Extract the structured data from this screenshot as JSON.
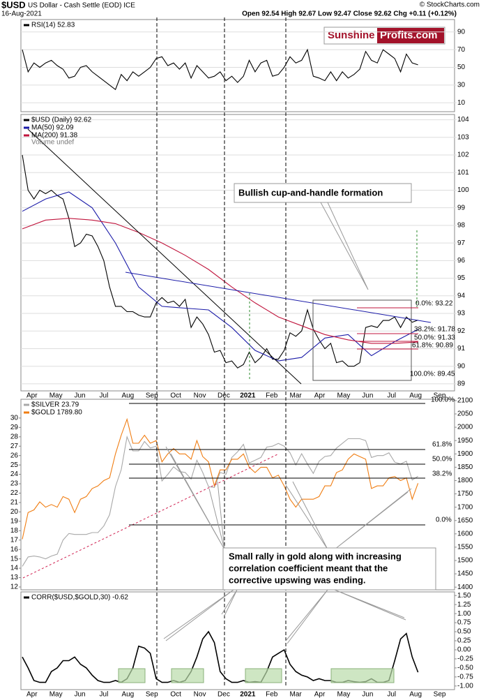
{
  "header": {
    "symbol": "$USD",
    "name": "US Dollar - Cash Settle (EOD) ICE",
    "source": "© StockCharts.com",
    "date": "16-Aug-2021",
    "ohlc": "Open 92.54 High 92.67 Low 92.47 Close 92.62 Chg +0.11 (+0.12%)",
    "logo_a": "Sunshine",
    "logo_b": "Profits.com"
  },
  "chart_data": [
    {
      "type": "line",
      "ylim": [
        0,
        104
      ],
      "yticks": [
        10,
        30,
        50,
        70,
        90
      ],
      "grid": true,
      "series": [
        {
          "name": "RSI(14) 52.83",
          "color": "#000000",
          "values": [
            70,
            45,
            55,
            50,
            55,
            58,
            52,
            48,
            38,
            40,
            50,
            52,
            45,
            40,
            35,
            30,
            25,
            42,
            35,
            45,
            40,
            45,
            50,
            60,
            62,
            52,
            55,
            48,
            55,
            38,
            52,
            45,
            38,
            40,
            45,
            35,
            40,
            33,
            40,
            58,
            45,
            55,
            58,
            40,
            42,
            50,
            62,
            55,
            58,
            70,
            40,
            38,
            35,
            45,
            35,
            45,
            38,
            42,
            48,
            68,
            58,
            55,
            70,
            65,
            60,
            45,
            65,
            55,
            52.83
          ]
        }
      ]
    },
    {
      "type": "line",
      "ylim": [
        88.6,
        104.3
      ],
      "yticks": [
        89,
        90,
        91,
        92,
        93,
        94,
        95,
        96,
        97,
        98,
        99,
        100,
        101,
        102,
        103,
        104
      ],
      "grid": true,
      "series": [
        {
          "name": "$USD (Daily) 92.62",
          "color": "#000000",
          "values": [
            102,
            100,
            99.5,
            100,
            99.8,
            100,
            99.7,
            99.5,
            98.4,
            96.8,
            97,
            97.5,
            97.4,
            96.8,
            96,
            94.5,
            93.4,
            93.4,
            93.1,
            93.1,
            92.9,
            92.8,
            92.8,
            93.6,
            93.9,
            93.6,
            93.7,
            93.4,
            93.8,
            92.2,
            92.8,
            92.4,
            91.8,
            90.8,
            90.9,
            90.2,
            90.3,
            89.9,
            90.1,
            90.8,
            90.2,
            90.5,
            91,
            90.4,
            90.4,
            90.9,
            91.9,
            91.7,
            92,
            93.2,
            92.1,
            91.5,
            91,
            91.3,
            90.2,
            90.3,
            90,
            90,
            90.2,
            92.2,
            92.3,
            92.2,
            92.6,
            92.6,
            92.8,
            92.2,
            92.8,
            92.5,
            92.62
          ]
        },
        {
          "name": "MA(50) 92.09",
          "color": "#1a1aa8",
          "values": [
            98.8,
            99.5,
            99.9,
            99,
            97,
            94.5,
            93.4,
            93.3,
            93.2,
            92.2,
            90.9,
            90.3,
            90.5,
            91.6,
            91.8,
            90.6,
            91.4,
            92.09
          ]
        },
        {
          "name": "MA(200) 91.38",
          "color": "#c0143c",
          "values": [
            97.8,
            98.3,
            98.4,
            98.3,
            98.1,
            97.6,
            97,
            96.3,
            95.5,
            94.5,
            93.6,
            92.8,
            92.3,
            91.8,
            91.5,
            91.3,
            91.3,
            91.38
          ]
        }
      ],
      "legend_extra": "Volume undef",
      "annotation": "Bullish cup-and-handle formation",
      "fib_labels": [
        "0.0%: 93.22",
        "38.2%: 91.78",
        "50.0%: 91.33",
        "61.8%: 90.89",
        "100.0%: 89.45"
      ],
      "months": [
        "Apr",
        "May",
        "Jun",
        "Jul",
        "Aug",
        "Sep",
        "Oct",
        "Nov",
        "Dec",
        "2021",
        "Feb",
        "Mar",
        "Apr",
        "May",
        "Jun",
        "Jul",
        "Aug",
        "Sep"
      ]
    },
    {
      "type": "line",
      "ylim": [
        11.7,
        32.0
      ],
      "yticks": [
        12,
        13,
        14,
        15,
        16,
        17,
        18,
        19,
        20,
        21,
        22,
        23,
        24,
        25,
        26,
        27,
        28,
        29,
        30
      ],
      "y2lim": [
        1390,
        2105
      ],
      "y2ticks": [
        1400,
        1450,
        1500,
        1550,
        1600,
        1650,
        1700,
        1750,
        1800,
        1850,
        1900,
        1950,
        2000,
        2050,
        2100
      ],
      "series": [
        {
          "name": "$SILVER 23.79",
          "color": "#a8a8a8",
          "values": [
            14.2,
            15.2,
            15.3,
            15.2,
            15,
            15.3,
            15.5,
            17,
            17.7,
            17.6,
            17.6,
            17.6,
            17.8,
            17.8,
            18.5,
            19.7,
            22.7,
            24.5,
            28,
            26.5,
            26.5,
            27.5,
            26.8,
            27,
            23.3,
            24,
            24.8,
            24.3,
            24.2,
            23.5,
            25.5,
            24.2,
            22.7,
            22.6,
            24.2,
            24,
            25.8,
            26.4,
            27.2,
            25.2,
            25.5,
            25.8,
            26.9,
            27,
            27.3,
            27,
            26.3,
            25,
            26.2,
            25.1,
            24.1,
            25.4,
            25.9,
            26,
            26.8,
            27.3,
            27.8,
            27.8,
            27.8,
            27.6,
            25.8,
            26,
            26,
            26.3,
            25.3,
            25.1,
            25.4,
            23.4,
            23.79
          ]
        },
        {
          "name": "$GOLD 1789.80",
          "color": "#f07d12",
          "axis": "y2",
          "values": [
            1580,
            1680,
            1690,
            1720,
            1700,
            1710,
            1700,
            1740,
            1730,
            1680,
            1730,
            1740,
            1770,
            1780,
            1800,
            1810,
            1900,
            1970,
            2030,
            1940,
            1940,
            1970,
            1940,
            1950,
            1870,
            1900,
            1920,
            1900,
            1900,
            1880,
            1950,
            1890,
            1870,
            1780,
            1840,
            1840,
            1880,
            1880,
            1900,
            1850,
            1830,
            1850,
            1850,
            1810,
            1820,
            1780,
            1730,
            1700,
            1730,
            1730,
            1730,
            1740,
            1780,
            1780,
            1830,
            1840,
            1880,
            1900,
            1890,
            1880,
            1770,
            1780,
            1780,
            1810,
            1815,
            1800,
            1810,
            1730,
            1789.8
          ]
        }
      ],
      "fib_labels": [
        "100.0%",
        "61.8%",
        "50.0%",
        "38.2%",
        "0.0%"
      ],
      "annotation": [
        "Small rally in gold along with increasing",
        "correlation coefficient meant that the",
        "corrective upswing was ending."
      ]
    },
    {
      "type": "line",
      "ylim": [
        -1.1,
        1.6
      ],
      "yticks": [
        {
          "value": -1,
          "label": "-1.00"
        },
        {
          "value": -0.75,
          "label": "-0.75"
        },
        {
          "value": -0.5,
          "label": "-0.50"
        },
        {
          "value": -0.25,
          "label": "-0.25"
        },
        {
          "value": 0,
          "label": "0.00"
        },
        {
          "value": 0.25,
          "label": "0.25"
        },
        {
          "value": 0.5,
          "label": "0.50"
        },
        {
          "value": 0.75,
          "label": "0.75"
        },
        {
          "value": 1,
          "label": "1.00"
        },
        {
          "value": 1.25,
          "label": "1.25"
        },
        {
          "value": 1.5,
          "label": "1.50"
        }
      ],
      "series": [
        {
          "name": "CORR($USD,$GOLD,30) -0.62",
          "color": "#000000",
          "values": [
            -0.2,
            -0.5,
            -0.85,
            -0.9,
            -0.9,
            -0.6,
            -0.5,
            -0.3,
            -0.3,
            -0.2,
            -0.4,
            -0.5,
            -0.7,
            -0.85,
            -0.9,
            -0.9,
            -0.85,
            -0.9,
            -0.8,
            -0.5,
            0.1,
            0.05,
            -0.1,
            -0.8,
            -0.9,
            -0.9,
            -0.85,
            -0.9,
            -0.85,
            -0.6,
            -0.2,
            0.3,
            0.5,
            0.2,
            -0.6,
            -0.8,
            -0.9,
            -0.9,
            -0.85,
            -0.9,
            -0.88,
            -0.9,
            -0.6,
            -0.2,
            -0.1,
            0,
            -0.4,
            -0.6,
            -0.7,
            -0.75,
            -0.85,
            -0.8,
            -0.85,
            -0.85,
            -0.9,
            -0.9,
            -0.85,
            -0.88,
            -0.9,
            -0.88,
            -0.8,
            -0.9,
            -0.9,
            -0.85,
            -0.3,
            0.3,
            0.45,
            -0.2,
            -0.62
          ]
        }
      ],
      "months": [
        "Apr",
        "May",
        "Jun",
        "Jul",
        "Aug",
        "Sep",
        "Oct",
        "Nov",
        "Dec",
        "2021",
        "Feb",
        "Mar",
        "Apr",
        "May",
        "Jun",
        "Jul",
        "Aug",
        "Sep"
      ]
    }
  ]
}
